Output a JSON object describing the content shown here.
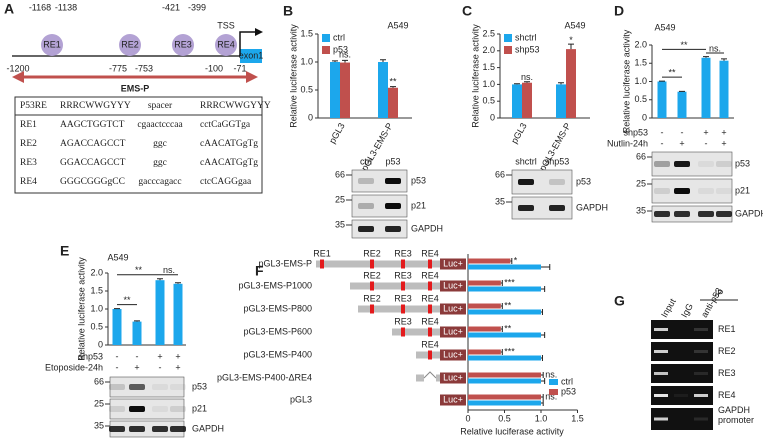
{
  "panel_a": {
    "label": "A",
    "sites": [
      {
        "name": "RE1",
        "start": -1168,
        "end": -1138
      },
      {
        "name": "RE2",
        "start": -775,
        "end": -753
      },
      {
        "name": "RE3",
        "start": -421,
        "end": -399
      },
      {
        "name": "RE4",
        "start": -100,
        "end": -71
      }
    ],
    "start": -1200,
    "tss": "TSS",
    "exon": "exon1",
    "region": "EMS-P",
    "table": [
      [
        "P53RE",
        "RRRCWWGYYY",
        "spacer",
        "RRRCWWGYYY"
      ],
      [
        "RE1",
        "AAGCTGGTCT",
        "cgaactcccaa",
        "cctCaGGTga"
      ],
      [
        "RE2",
        "AGACCAGCCT",
        "ggc",
        "cAACATGgTg"
      ],
      [
        "RE3",
        "GGACCAGCCT",
        "ggc",
        "cAACATGgTg"
      ],
      [
        "RE4",
        "GGGCGGGgCC",
        "gacccagacc",
        "ctcCAGGgaa"
      ]
    ]
  },
  "chart_data": [
    {
      "type": "bar",
      "panel": "B",
      "title": "A549",
      "y_label": "Relative luciferase activity",
      "categories": [
        "pGL3",
        "pGL3-EMS-P"
      ],
      "series": [
        {
          "name": "ctrl",
          "color": "#1ca7ec",
          "values": [
            1.0,
            1.0
          ],
          "errors": [
            0.02,
            0.04
          ]
        },
        {
          "name": "p53",
          "color": "#c0504d",
          "values": [
            0.99,
            0.54
          ],
          "errors": [
            0.04,
            0.02
          ]
        }
      ],
      "ylim": [
        0,
        1.5
      ],
      "yticks": [
        0,
        0.5,
        {
          "value": 1,
          "label": "1.0"
        },
        1.5
      ],
      "annotations": [
        "ns.",
        "**"
      ],
      "blot": {
        "lanes": [
          "ctrl",
          "p53"
        ],
        "markers": [
          66,
          25,
          35
        ],
        "bands": [
          "p53",
          "p21",
          "GAPDH"
        ]
      }
    },
    {
      "type": "bar",
      "panel": "C",
      "title": "A549",
      "y_label": "Relative luciferase activity",
      "categories": [
        "pGL3",
        "pGL3-EMS-P"
      ],
      "series": [
        {
          "name": "shctrl",
          "color": "#1ca7ec",
          "values": [
            1.0,
            1.0
          ],
          "errors": [
            0.02,
            0.05
          ]
        },
        {
          "name": "shp53",
          "color": "#c0504d",
          "values": [
            1.05,
            2.05
          ],
          "errors": [
            0.03,
            0.15
          ]
        }
      ],
      "ylim": [
        0,
        2.5
      ],
      "yticks": [
        0,
        0.5,
        {
          "value": 1,
          "label": "1.0"
        },
        1.5,
        {
          "value": 2,
          "label": "2.0"
        },
        2.5
      ],
      "annotations": [
        "ns.",
        "*"
      ],
      "blot": {
        "lanes": [
          "shctrl",
          "shp53"
        ],
        "markers": [
          66,
          35
        ],
        "bands": [
          "p53",
          "GAPDH"
        ]
      }
    },
    {
      "type": "bar",
      "panel": "D",
      "title": "A549",
      "y_label": "Relative luciferase activity",
      "color": "#1ca7ec",
      "values": [
        1.0,
        0.72,
        1.65,
        1.57
      ],
      "errors": [
        0.01,
        0.01,
        0.03,
        0.05
      ],
      "ylim": [
        0,
        2
      ],
      "yticks": [
        0,
        0.5,
        {
          "value": 1,
          "label": "1.0"
        },
        1.5,
        {
          "value": 2,
          "label": "2.0"
        }
      ],
      "annotations": [
        "**",
        "**",
        "ns."
      ],
      "conditions": [
        {
          "label": "shp53",
          "values": [
            "-",
            "-",
            "+",
            "+"
          ]
        },
        {
          "label": "Nutlin-24h",
          "values": [
            "-",
            "+",
            "-",
            "+"
          ]
        }
      ],
      "blot": {
        "markers": [
          66,
          25,
          35
        ],
        "bands": [
          "p53",
          "p21",
          "GAPDH"
        ]
      }
    },
    {
      "type": "bar",
      "panel": "E",
      "title": "A549",
      "y_label": "Relative luciferase activity",
      "color": "#1ca7ec",
      "values": [
        1.0,
        0.65,
        1.8,
        1.7
      ],
      "errors": [
        0.01,
        0.02,
        0.04,
        0.03
      ],
      "ylim": [
        0,
        2
      ],
      "yticks": [
        0,
        0.5,
        {
          "value": 1,
          "label": "1.0"
        },
        1.5,
        {
          "value": 2,
          "label": "2.0"
        }
      ],
      "annotations": [
        "**",
        "**",
        "ns."
      ],
      "conditions": [
        {
          "label": "shp53",
          "values": [
            "-",
            "-",
            "+",
            "+"
          ]
        },
        {
          "label": "Etoposide-24h",
          "values": [
            "-",
            "+",
            "-",
            "+"
          ]
        }
      ],
      "blot": {
        "markers": [
          66,
          25,
          35
        ],
        "bands": [
          "p53",
          "p21",
          "GAPDH"
        ]
      }
    },
    {
      "type": "bar",
      "orientation": "horizontal",
      "panel": "F",
      "x_label": "Relative luciferase activity",
      "categories": [
        "pGL3-EMS-P",
        "pGL3-EMS-P1000",
        "pGL3-EMS-P800",
        "pGL3-EMS-P600",
        "pGL3-EMS-P400",
        "pGL3-EMS-P400-ΔRE4",
        "pGL3"
      ],
      "series": [
        {
          "name": "ctrl",
          "color": "#1ca7ec",
          "values": [
            1.0,
            1.0,
            1.0,
            1.0,
            1.0,
            1.0,
            1.0
          ],
          "errors": [
            0.12,
            0.05,
            0.02,
            0.05,
            0.02,
            0.05,
            0.03
          ]
        },
        {
          "name": "p53",
          "color": "#c0504d",
          "values": [
            0.58,
            0.45,
            0.45,
            0.45,
            0.45,
            1.0,
            1.0
          ],
          "errors": [
            0.02,
            0.02,
            0.02,
            0.02,
            0.02,
            0.03,
            0.03
          ]
        }
      ],
      "xlim": [
        0,
        1.5
      ],
      "xticks": [
        0,
        0.5,
        {
          "value": 1,
          "label": "1.0"
        },
        1.5
      ],
      "annotations": [
        "*",
        "***",
        "**",
        "**",
        "***",
        "ns.",
        "ns."
      ],
      "elements": [
        [
          "RE1",
          "RE2",
          "RE3",
          "RE4"
        ],
        [
          "RE2",
          "RE3",
          "RE4"
        ],
        [
          "RE2",
          "RE3",
          "RE4"
        ],
        [
          "RE3",
          "RE4"
        ],
        [
          "RE4"
        ],
        [],
        []
      ],
      "reporter": "Luc+",
      "legend": "lower right"
    }
  ],
  "panel_g": {
    "label": "G",
    "ip": "IP",
    "lanes": [
      "Input",
      "IgG",
      "anti-p53"
    ],
    "rows": [
      "RE1",
      "RE2",
      "RE3",
      "RE4",
      "GAPDH promoter"
    ]
  }
}
